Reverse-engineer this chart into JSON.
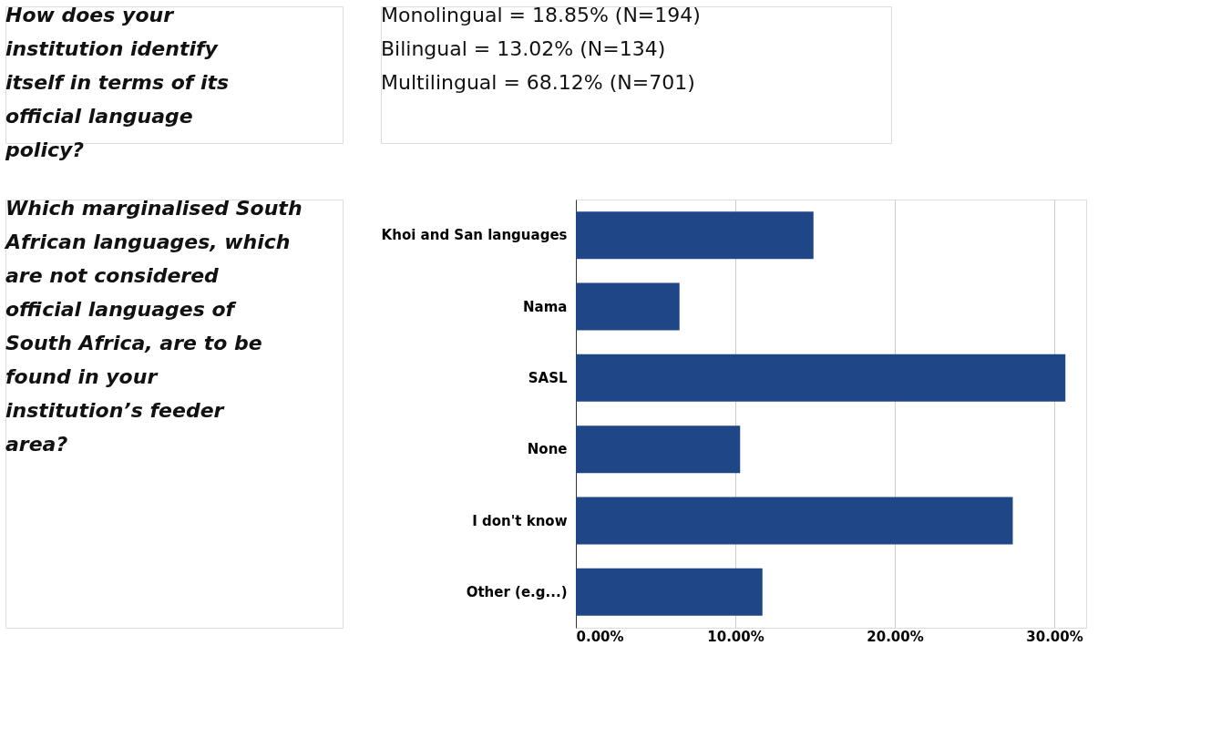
{
  "chart_data": {
    "type": "bar",
    "orientation": "horizontal",
    "categories": [
      "Khoi and San languages",
      "Nama",
      "SASL",
      "None",
      "I don't know",
      "Other (e.g...)"
    ],
    "values": [
      14.9,
      6.5,
      30.7,
      10.3,
      27.4,
      11.7
    ],
    "color": "#1f4788",
    "xlim": [
      0,
      32
    ],
    "xticks": [
      {
        "value": 0,
        "label": "0.00%"
      },
      {
        "value": 10,
        "label": "10.00%"
      },
      {
        "value": 20,
        "label": "20.00%"
      },
      {
        "value": 30,
        "label": "30.00%"
      }
    ],
    "grid": "x",
    "annotations": [
      "How does your institution identify itself in terms of its official language policy?",
      "Monolingual = 18.85% (N=194)",
      "Bilingual = 13.02% (N=134)",
      "Multilingual = 68.12% (N=701)",
      "Which marginalised South African languages, which are not considered official languages of South Africa, are to be found in your institution’s feeder area?"
    ]
  }
}
